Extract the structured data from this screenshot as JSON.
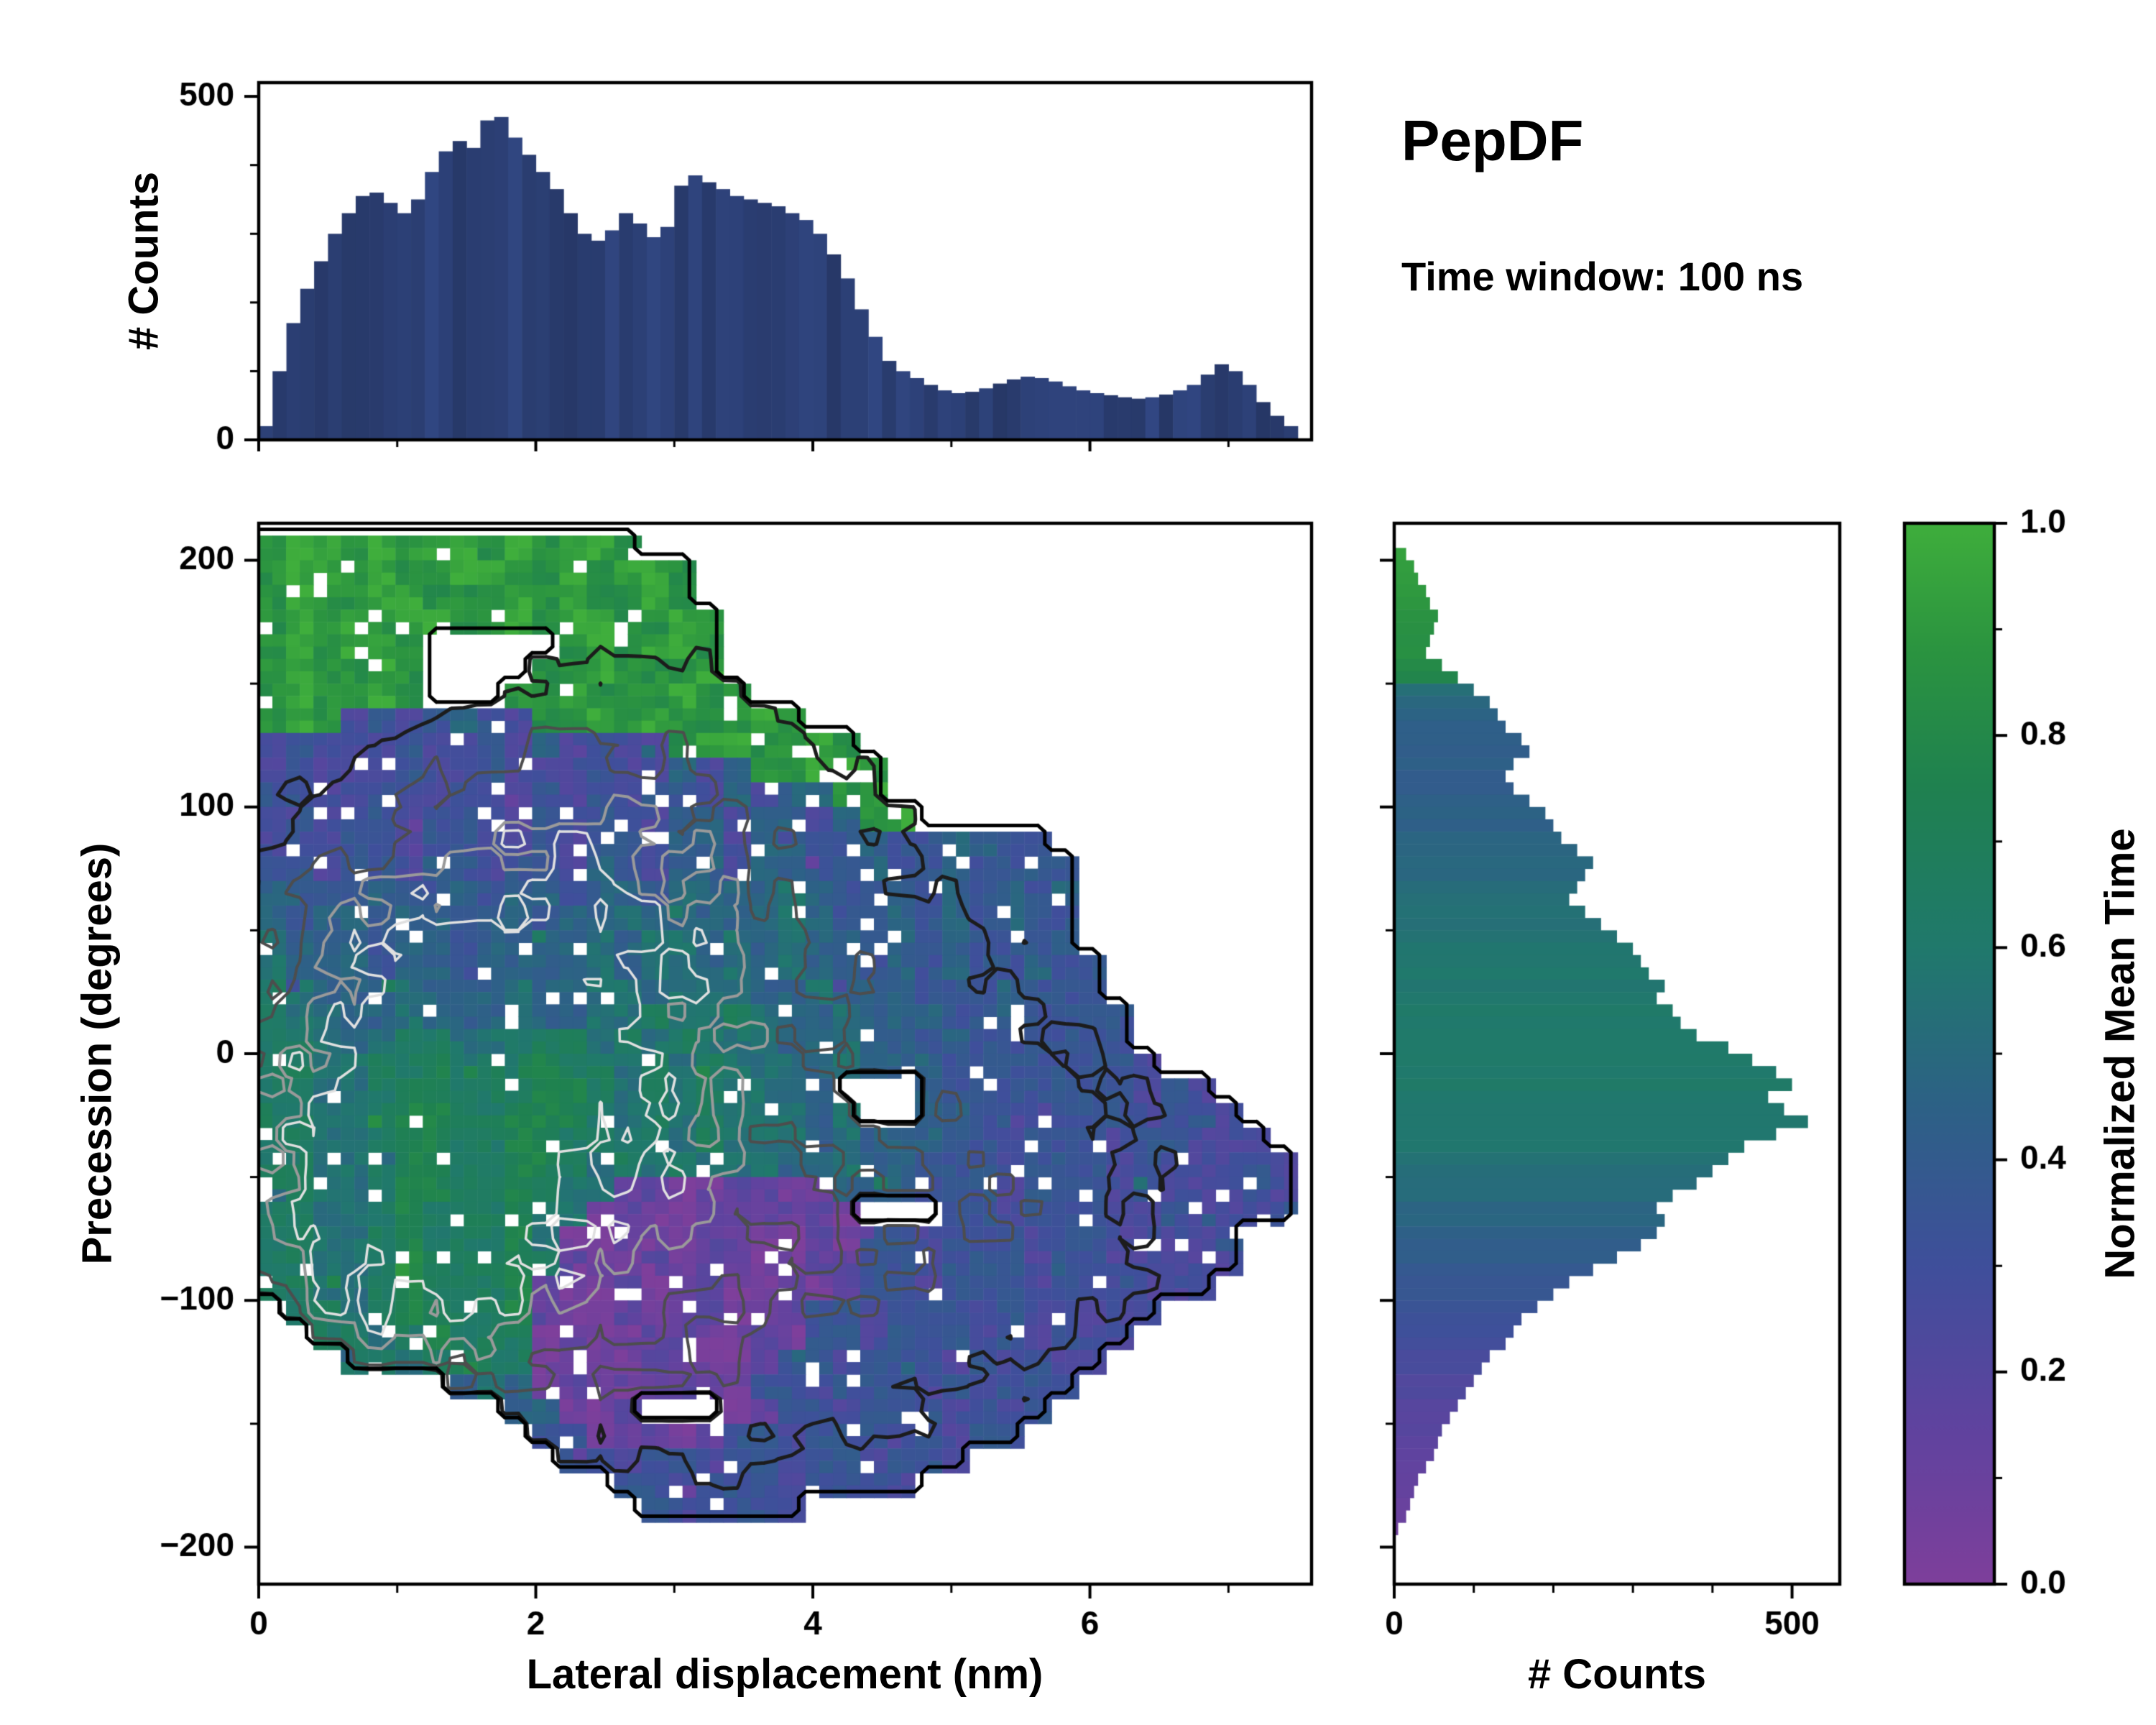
{
  "header": {
    "title": "PepDF",
    "subtitle": "Time window: 100 ns"
  },
  "labels": {
    "top_ylabel": "# Counts",
    "main_xlabel": "Lateral displacement (nm)",
    "main_ylabel": "Precession (degrees)",
    "right_xlabel": "# Counts",
    "colorbar_label": "Normalized Mean Time"
  },
  "colors": {
    "background": "#ffffff",
    "axis": "#000000",
    "top_hist_bar": "#2b3e72",
    "colormap_stops": [
      [
        0.0,
        "#7e3f9b"
      ],
      [
        0.15,
        "#5f439f"
      ],
      [
        0.3,
        "#3f4f9b"
      ],
      [
        0.45,
        "#2d6186"
      ],
      [
        0.6,
        "#20796c"
      ],
      [
        0.75,
        "#1f8150"
      ],
      [
        0.88,
        "#2b9440"
      ],
      [
        1.0,
        "#3fae3c"
      ]
    ]
  },
  "chart_data": {
    "layout": "2D mean-time heatmap with marginal histograms (top and right) and colorbar",
    "top_histogram": {
      "type": "bar",
      "ylabel": "# Counts",
      "x_range": [
        0,
        7.6
      ],
      "y_range": [
        0,
        520
      ],
      "yticks": [
        0,
        500
      ],
      "x_start": 0,
      "bin_width": 0.1,
      "values": [
        20,
        100,
        170,
        220,
        260,
        300,
        330,
        355,
        360,
        345,
        330,
        350,
        390,
        420,
        435,
        425,
        465,
        470,
        440,
        415,
        390,
        365,
        330,
        300,
        290,
        305,
        330,
        315,
        295,
        310,
        370,
        385,
        375,
        365,
        355,
        350,
        345,
        340,
        330,
        320,
        300,
        270,
        235,
        190,
        150,
        115,
        100,
        90,
        80,
        72,
        68,
        70,
        75,
        82,
        88,
        92,
        90,
        85,
        78,
        72,
        68,
        65,
        62,
        60,
        62,
        66,
        72,
        80,
        95,
        110,
        100,
        80,
        55,
        35,
        20
      ]
    },
    "heatmap": {
      "type": "heatmap",
      "xlabel": "Lateral displacement (nm)",
      "ylabel": "Precession (degrees)",
      "value_label": "Normalized Mean Time",
      "x_range": [
        0,
        7.6
      ],
      "y_range": [
        -215,
        215
      ],
      "xticks": [
        0,
        2,
        4,
        6
      ],
      "yticks": [
        -200,
        -100,
        0,
        100,
        200
      ],
      "grid": {
        "nx": 38,
        "ny": 42,
        "x0": 0,
        "x1": 7.5,
        "y0": 210,
        "y1": -210,
        "encoding": "rows top-to-bottom; '.'=empty bin, digit d = normalized mean time (d+0.5)/10",
        "rows": [
          "89989899898998........................",
          "8998988998898998......................",
          "8988998889898898......................",
          "89898998898998898.....................",
          "898998.....898998.....................",
          "898898....8898889.....................",
          "898898...889888988....................",
          "89823234228898988898..................",
          "2322232232423228998898................",
          "23222322322232242488998...............",
          "33223223223232332424489...............",
          "232332332232332442442489..............",
          "23233233223233244244334334433.........",
          "332332432332432442443343343343........",
          "433343343443443544454334343434........",
          "434434434434454454454334343433........",
          "544434434444545545454434343334........",
          "5444344344445455454544343433433.......",
          "6544454445445545554454443334333.......",
          "65544544454455655654454443343333......",
          "66545665566656565554454434333333......",
          "665566756676656565554544433333332.....",
          "665567766677656565554...43333333232...",
          "6655677667776565655545..443323332332..",
          "6655677667766565655545444332333233222.",
          "66556776677656565554454433323332322232",
          "66556776676551100110044433323332322232",
          "6655676667550100110010...3323332232223",
          "665567666750010011001033233323322223..",
          "665568666761001011001133233323322222..",
          "66556766671001011001013323332322222...",
          ".66567666710010110013323332322222.....",
          "..665676660100110010332333232322......",
          "...6656766010011001332333232322.......",
          ".......45401001100332333232333........",
          ".........44001...013323332323.........",
          "..........330110133233323233..........",
          "...........332332332332332............",
          ".............33233323332..............",
          "..............323332..................",
          "......................................",
          "......................................"
        ]
      },
      "contours": {
        "boundary_color": "#000000",
        "boundary_width": 5,
        "density_levels": [
          {
            "level": 0.26,
            "color": "#1c1c1c",
            "width": 5
          },
          {
            "level": 0.5,
            "color": "#4d4d4d",
            "width": 4
          },
          {
            "level": 0.72,
            "color": "#9a9a9a",
            "width": 4
          },
          {
            "level": 0.9,
            "color": "#e0e0e0",
            "width": 3.5
          }
        ],
        "density_centers": [
          {
            "x": 1.5,
            "y": -10,
            "amp": 1.0,
            "sx": 1.15,
            "sy": 75
          },
          {
            "x": 0.8,
            "y": -80,
            "amp": 0.5,
            "sx": 0.75,
            "sy": 55
          },
          {
            "x": 2.9,
            "y": 55,
            "amp": 0.5,
            "sx": 1.4,
            "sy": 85
          },
          {
            "x": 5.4,
            "y": -60,
            "amp": 0.38,
            "sx": 1.15,
            "sy": 70
          },
          {
            "x": 3.3,
            "y": -120,
            "amp": 0.28,
            "sx": 1.0,
            "sy": 55
          }
        ]
      }
    },
    "right_histogram": {
      "type": "bar",
      "orientation": "horizontal",
      "xlabel": "# Counts",
      "x_range": [
        0,
        560
      ],
      "xticks": [
        0,
        500
      ],
      "y_range": [
        -215,
        215
      ],
      "y_start": 210,
      "bin_width_deg": 5,
      "counts": [
        0,
        15,
        25,
        30,
        40,
        45,
        55,
        50,
        45,
        40,
        60,
        80,
        100,
        120,
        130,
        140,
        160,
        170,
        150,
        140,
        150,
        170,
        190,
        200,
        210,
        230,
        250,
        240,
        230,
        220,
        240,
        260,
        280,
        300,
        310,
        320,
        340,
        330,
        350,
        360,
        380,
        420,
        450,
        480,
        500,
        470,
        490,
        520,
        480,
        440,
        420,
        400,
        380,
        350,
        330,
        340,
        330,
        310,
        280,
        250,
        220,
        200,
        180,
        160,
        150,
        140,
        120,
        110,
        100,
        90,
        80,
        70,
        60,
        55,
        50,
        40,
        30,
        25,
        20,
        15,
        5,
        0,
        0,
        0
      ],
      "mean_time": [
        0.95,
        0.95,
        0.92,
        0.9,
        0.9,
        0.88,
        0.87,
        0.86,
        0.85,
        0.84,
        0.83,
        0.8,
        0.55,
        0.48,
        0.46,
        0.45,
        0.44,
        0.43,
        0.43,
        0.42,
        0.42,
        0.43,
        0.44,
        0.45,
        0.46,
        0.47,
        0.48,
        0.5,
        0.52,
        0.53,
        0.54,
        0.55,
        0.56,
        0.57,
        0.58,
        0.58,
        0.59,
        0.6,
        0.6,
        0.61,
        0.61,
        0.62,
        0.62,
        0.61,
        0.61,
        0.6,
        0.6,
        0.59,
        0.58,
        0.57,
        0.56,
        0.54,
        0.52,
        0.5,
        0.48,
        0.46,
        0.45,
        0.43,
        0.41,
        0.39,
        0.37,
        0.35,
        0.33,
        0.31,
        0.29,
        0.27,
        0.26,
        0.24,
        0.23,
        0.22,
        0.2,
        0.19,
        0.18,
        0.17,
        0.15,
        0.14,
        0.13,
        0.12,
        0.11,
        0.1,
        0.08,
        0.05,
        0.05,
        0.05
      ]
    },
    "colorbar": {
      "label": "Normalized Mean Time",
      "range": [
        0,
        1
      ],
      "ticks": [
        0.0,
        0.2,
        0.4,
        0.6,
        0.8,
        1.0
      ]
    }
  }
}
